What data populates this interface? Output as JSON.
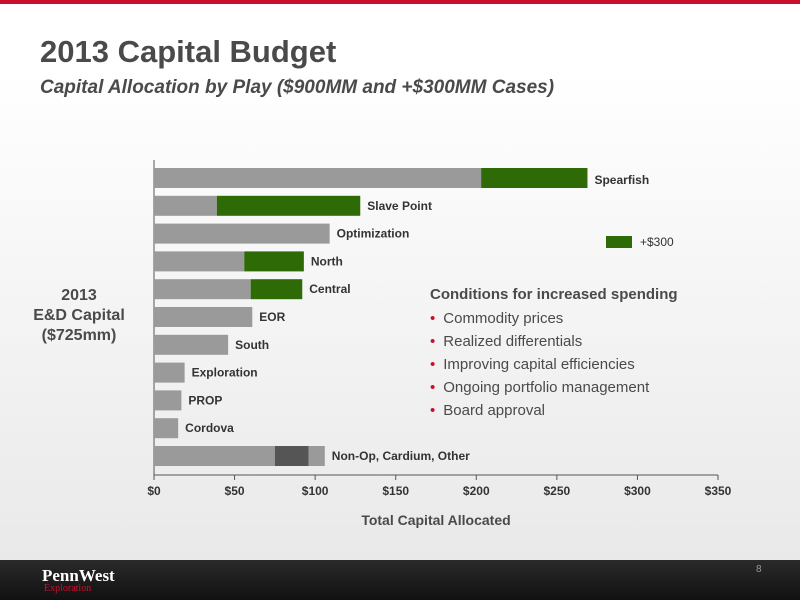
{
  "title": "2013 Capital Budget",
  "subtitle": "Capital Allocation by Play ($900MM and +$300MM Cases)",
  "ylabel_lines": [
    "2013",
    "E&D Capital",
    "($725mm)"
  ],
  "legend_label": "+$300",
  "conditions": {
    "title": "Conditions for increased spending",
    "items": [
      "Commodity prices",
      "Realized differentials",
      "Improving capital efficiencies",
      "Ongoing portfolio management",
      "Board approval"
    ]
  },
  "footer": {
    "logo": "PennWest",
    "logo_sub": "Exploration",
    "page_number": "8"
  },
  "colors": {
    "base": "#9a9a9a",
    "increase": "#2e6b06",
    "dark": "#555555",
    "accent": "#c8102e"
  },
  "chart_data": {
    "type": "bar",
    "orientation": "horizontal",
    "stacked": true,
    "categories": [
      "Spearfish",
      "Slave Point",
      "Optimization",
      "North",
      "Central",
      "EOR",
      "South",
      "Exploration",
      "PROP",
      "Cordova",
      "Non-Op, Cardium, Other"
    ],
    "series": [
      {
        "values": [
          203,
          39,
          109,
          56,
          60,
          61,
          46,
          19,
          17,
          15,
          75
        ],
        "color": "#9a9a9a"
      },
      {
        "values": [
          0,
          0,
          0,
          0,
          0,
          0,
          0,
          0,
          0,
          0,
          21
        ],
        "color": "#555555"
      },
      {
        "values": [
          0,
          0,
          0,
          0,
          0,
          0,
          0,
          0,
          0,
          0,
          10
        ],
        "color": "#9a9a9a"
      },
      {
        "name": "+$300",
        "values": [
          66,
          89,
          0,
          37,
          32,
          0,
          0,
          0,
          0,
          0,
          0
        ],
        "color": "#2e6b06"
      }
    ],
    "xlabel": "Total Capital Allocated",
    "xlim": [
      0,
      350
    ],
    "xticks": [
      "$0",
      "$50",
      "$100",
      "$150",
      "$200",
      "$250",
      "$300",
      "$350"
    ]
  }
}
